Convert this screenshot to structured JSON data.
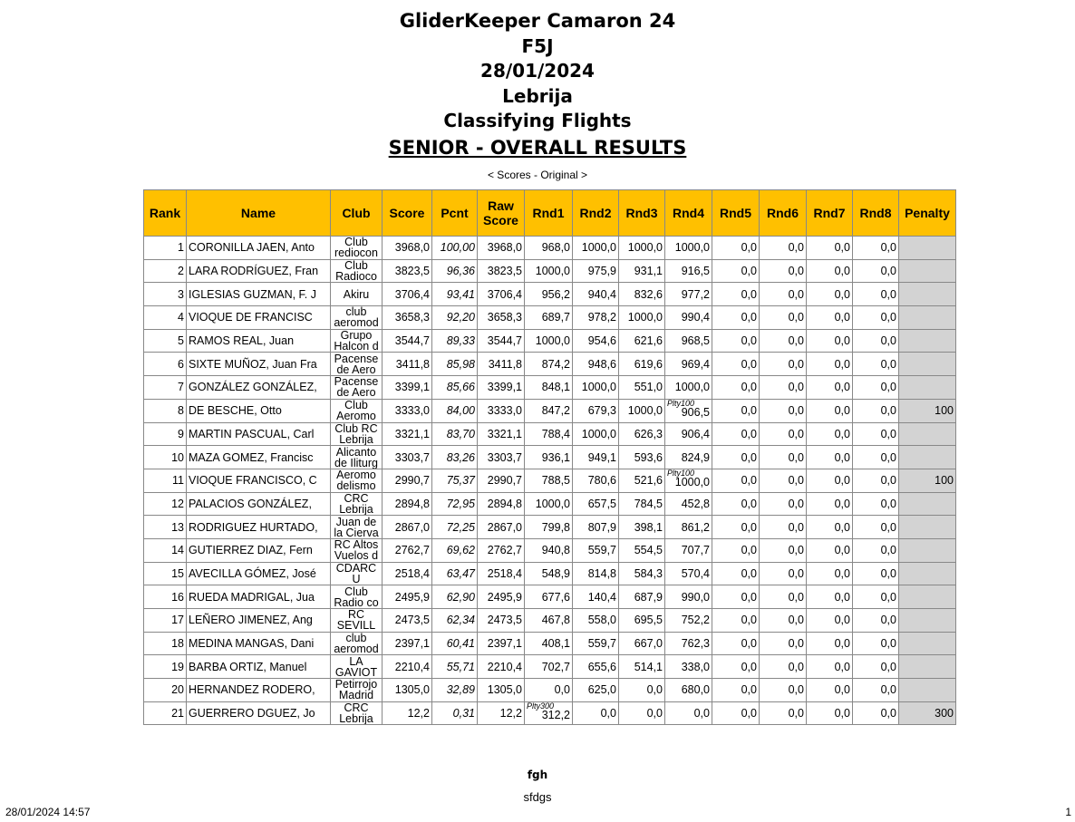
{
  "header": {
    "title": "GliderKeeper Camaron 24",
    "class": "F5J",
    "date": "28/01/2024",
    "location": "Lebrija",
    "section": "Classifying Flights",
    "results_title": "SENIOR - OVERALL RESULTS",
    "subtitle": "< Scores - Original >"
  },
  "colors": {
    "header_bg": "#FFC000",
    "penalty_bg": "#D3D3D3"
  },
  "table": {
    "columns": [
      "Rank",
      "Name",
      "Club",
      "Score",
      "Pcnt",
      "Raw Score",
      "Rnd1",
      "Rnd2",
      "Rnd3",
      "Rnd4",
      "Rnd5",
      "Rnd6",
      "Rnd7",
      "Rnd8",
      "Penalty"
    ],
    "rows": [
      {
        "rank": "1",
        "name": "CORONILLA JAEN, Anto",
        "club": "Club rediocon",
        "score": "3968,0",
        "pcnt": "100,00",
        "raw": "3968,0",
        "rnds": [
          "968,0",
          "1000,0",
          "1000,0",
          "1000,0",
          "0,0",
          "0,0",
          "0,0",
          "0,0"
        ],
        "notes": {},
        "penalty": ""
      },
      {
        "rank": "2",
        "name": "LARA RODRÍGUEZ, Fran",
        "club": "Club Radioco",
        "score": "3823,5",
        "pcnt": "96,36",
        "raw": "3823,5",
        "rnds": [
          "1000,0",
          "975,9",
          "931,1",
          "916,5",
          "0,0",
          "0,0",
          "0,0",
          "0,0"
        ],
        "notes": {},
        "penalty": ""
      },
      {
        "rank": "3",
        "name": "IGLESIAS GUZMAN, F. J",
        "club": "Akiru",
        "score": "3706,4",
        "pcnt": "93,41",
        "raw": "3706,4",
        "rnds": [
          "956,2",
          "940,4",
          "832,6",
          "977,2",
          "0,0",
          "0,0",
          "0,0",
          "0,0"
        ],
        "notes": {},
        "penalty": ""
      },
      {
        "rank": "4",
        "name": "VIOQUE DE FRANCISC",
        "club": "club aeromod",
        "score": "3658,3",
        "pcnt": "92,20",
        "raw": "3658,3",
        "rnds": [
          "689,7",
          "978,2",
          "1000,0",
          "990,4",
          "0,0",
          "0,0",
          "0,0",
          "0,0"
        ],
        "notes": {},
        "penalty": ""
      },
      {
        "rank": "5",
        "name": "RAMOS REAL, Juan",
        "club": "Grupo Halcon d",
        "score": "3544,7",
        "pcnt": "89,33",
        "raw": "3544,7",
        "rnds": [
          "1000,0",
          "954,6",
          "621,6",
          "968,5",
          "0,0",
          "0,0",
          "0,0",
          "0,0"
        ],
        "notes": {},
        "penalty": ""
      },
      {
        "rank": "6",
        "name": "SIXTE MUÑOZ, Juan Fra",
        "club": "Pacense de Aero",
        "score": "3411,8",
        "pcnt": "85,98",
        "raw": "3411,8",
        "rnds": [
          "874,2",
          "948,6",
          "619,6",
          "969,4",
          "0,0",
          "0,0",
          "0,0",
          "0,0"
        ],
        "notes": {},
        "penalty": ""
      },
      {
        "rank": "7",
        "name": "GONZÁLEZ GONZÁLEZ,",
        "club": "Pacense de Aero",
        "score": "3399,1",
        "pcnt": "85,66",
        "raw": "3399,1",
        "rnds": [
          "848,1",
          "1000,0",
          "551,0",
          "1000,0",
          "0,0",
          "0,0",
          "0,0",
          "0,0"
        ],
        "notes": {},
        "penalty": ""
      },
      {
        "rank": "8",
        "name": "DE BESCHE, Otto",
        "club": "Club Aeromo",
        "score": "3333,0",
        "pcnt": "84,00",
        "raw": "3333,0",
        "rnds": [
          "847,2",
          "679,3",
          "1000,0",
          "906,5",
          "0,0",
          "0,0",
          "0,0",
          "0,0"
        ],
        "notes": {
          "3": "Plty100"
        },
        "penalty": "100"
      },
      {
        "rank": "9",
        "name": "MARTIN PASCUAL, Carl",
        "club": "Club RC Lebrija",
        "score": "3321,1",
        "pcnt": "83,70",
        "raw": "3321,1",
        "rnds": [
          "788,4",
          "1000,0",
          "626,3",
          "906,4",
          "0,0",
          "0,0",
          "0,0",
          "0,0"
        ],
        "notes": {},
        "penalty": ""
      },
      {
        "rank": "10",
        "name": "MAZA GOMEZ, Francisc",
        "club": "Alicanto de Iliturg",
        "score": "3303,7",
        "pcnt": "83,26",
        "raw": "3303,7",
        "rnds": [
          "936,1",
          "949,1",
          "593,6",
          "824,9",
          "0,0",
          "0,0",
          "0,0",
          "0,0"
        ],
        "notes": {},
        "penalty": ""
      },
      {
        "rank": "11",
        "name": "VIOQUE FRANCISCO, C",
        "club": "Aeromo delismo",
        "score": "2990,7",
        "pcnt": "75,37",
        "raw": "2990,7",
        "rnds": [
          "788,5",
          "780,6",
          "521,6",
          "1000,0",
          "0,0",
          "0,0",
          "0,0",
          "0,0"
        ],
        "notes": {
          "3": "Plty100"
        },
        "penalty": "100"
      },
      {
        "rank": "12",
        "name": "PALACIOS GONZÁLEZ,",
        "club": "CRC Lebrija",
        "score": "2894,8",
        "pcnt": "72,95",
        "raw": "2894,8",
        "rnds": [
          "1000,0",
          "657,5",
          "784,5",
          "452,8",
          "0,0",
          "0,0",
          "0,0",
          "0,0"
        ],
        "notes": {},
        "penalty": ""
      },
      {
        "rank": "13",
        "name": "RODRIGUEZ HURTADO,",
        "club": "Juan de la Cierva",
        "score": "2867,0",
        "pcnt": "72,25",
        "raw": "2867,0",
        "rnds": [
          "799,8",
          "807,9",
          "398,1",
          "861,2",
          "0,0",
          "0,0",
          "0,0",
          "0,0"
        ],
        "notes": {},
        "penalty": ""
      },
      {
        "rank": "14",
        "name": "GUTIERREZ DIAZ, Fern",
        "club": "RC Altos Vuelos d",
        "score": "2762,7",
        "pcnt": "69,62",
        "raw": "2762,7",
        "rnds": [
          "940,8",
          "559,7",
          "554,5",
          "707,7",
          "0,0",
          "0,0",
          "0,0",
          "0,0"
        ],
        "notes": {},
        "penalty": ""
      },
      {
        "rank": "15",
        "name": "AVECILLA GÓMEZ, José",
        "club": "CDARC U",
        "score": "2518,4",
        "pcnt": "63,47",
        "raw": "2518,4",
        "rnds": [
          "548,9",
          "814,8",
          "584,3",
          "570,4",
          "0,0",
          "0,0",
          "0,0",
          "0,0"
        ],
        "notes": {},
        "penalty": ""
      },
      {
        "rank": "16",
        "name": "RUEDA MADRIGAL, Jua",
        "club": "Club Radio co",
        "score": "2495,9",
        "pcnt": "62,90",
        "raw": "2495,9",
        "rnds": [
          "677,6",
          "140,4",
          "687,9",
          "990,0",
          "0,0",
          "0,0",
          "0,0",
          "0,0"
        ],
        "notes": {},
        "penalty": ""
      },
      {
        "rank": "17",
        "name": "LEÑERO JIMENEZ, Ang",
        "club": "RC SEVILL",
        "score": "2473,5",
        "pcnt": "62,34",
        "raw": "2473,5",
        "rnds": [
          "467,8",
          "558,0",
          "695,5",
          "752,2",
          "0,0",
          "0,0",
          "0,0",
          "0,0"
        ],
        "notes": {},
        "penalty": ""
      },
      {
        "rank": "18",
        "name": "MEDINA MANGAS, Dani",
        "club": "club aeromod",
        "score": "2397,1",
        "pcnt": "60,41",
        "raw": "2397,1",
        "rnds": [
          "408,1",
          "559,7",
          "667,0",
          "762,3",
          "0,0",
          "0,0",
          "0,0",
          "0,0"
        ],
        "notes": {},
        "penalty": ""
      },
      {
        "rank": "19",
        "name": "BARBA ORTIZ, Manuel",
        "club": "LA GAVIOT",
        "score": "2210,4",
        "pcnt": "55,71",
        "raw": "2210,4",
        "rnds": [
          "702,7",
          "655,6",
          "514,1",
          "338,0",
          "0,0",
          "0,0",
          "0,0",
          "0,0"
        ],
        "notes": {},
        "penalty": ""
      },
      {
        "rank": "20",
        "name": "HERNANDEZ RODERO,",
        "club": "Petirrojo Madrid",
        "score": "1305,0",
        "pcnt": "32,89",
        "raw": "1305,0",
        "rnds": [
          "0,0",
          "625,0",
          "0,0",
          "680,0",
          "0,0",
          "0,0",
          "0,0",
          "0,0"
        ],
        "notes": {},
        "penalty": ""
      },
      {
        "rank": "21",
        "name": "GUERRERO DGUEZ, Jo",
        "club": "CRC Lebrija",
        "score": "12,2",
        "pcnt": "0,31",
        "raw": "12,2",
        "rnds": [
          "312,2",
          "0,0",
          "0,0",
          "0,0",
          "0,0",
          "0,0",
          "0,0",
          "0,0"
        ],
        "notes": {
          "0": "Plty300"
        },
        "penalty": "300"
      }
    ]
  },
  "footer": {
    "line1": "fgh",
    "line2": "sfdgs",
    "printed": "28/01/2024 14:57",
    "page": "1"
  }
}
